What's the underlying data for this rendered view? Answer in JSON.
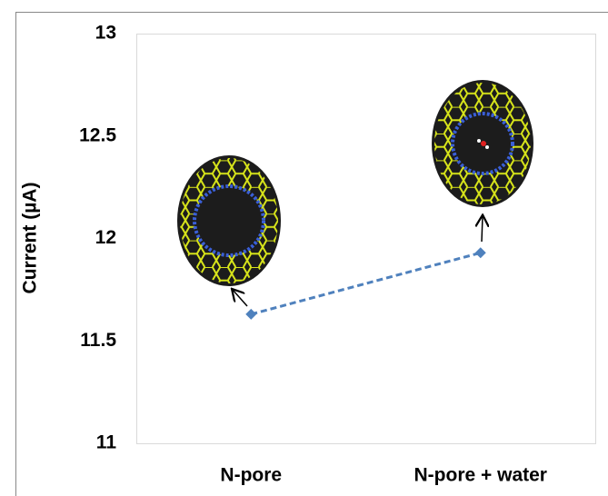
{
  "chart_data": {
    "type": "line",
    "y_label": "Current (µA)",
    "categories": [
      "N-pore",
      "N-pore + water"
    ],
    "values": [
      11.63,
      11.93
    ],
    "color": "#4f81bd",
    "ylim": [
      11,
      13
    ],
    "yticks": [
      11,
      11.5,
      12,
      12.5,
      13
    ],
    "grid": false
  }
}
